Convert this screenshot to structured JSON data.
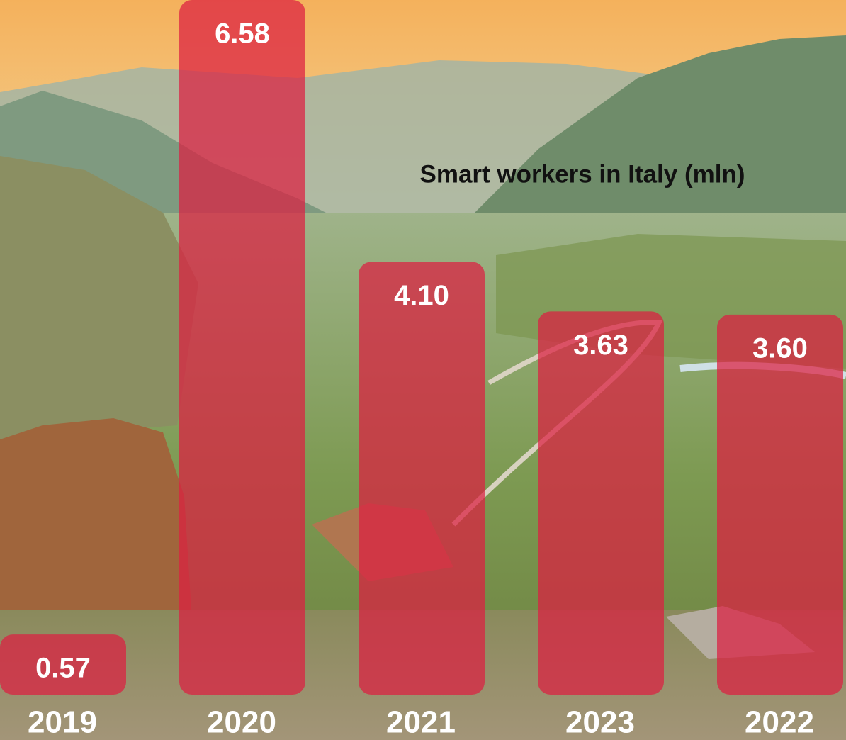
{
  "chart_data": {
    "type": "bar",
    "title": "Smart workers in Italy (mln)",
    "categories": [
      "2019",
      "2020",
      "2021",
      "2023",
      "2022"
    ],
    "values": [
      0.57,
      6.58,
      4.1,
      3.63,
      3.6
    ],
    "value_labels": [
      "0.57",
      "6.58",
      "4.10",
      "3.63",
      "3.60"
    ],
    "color": "#dc1e41"
  }
}
